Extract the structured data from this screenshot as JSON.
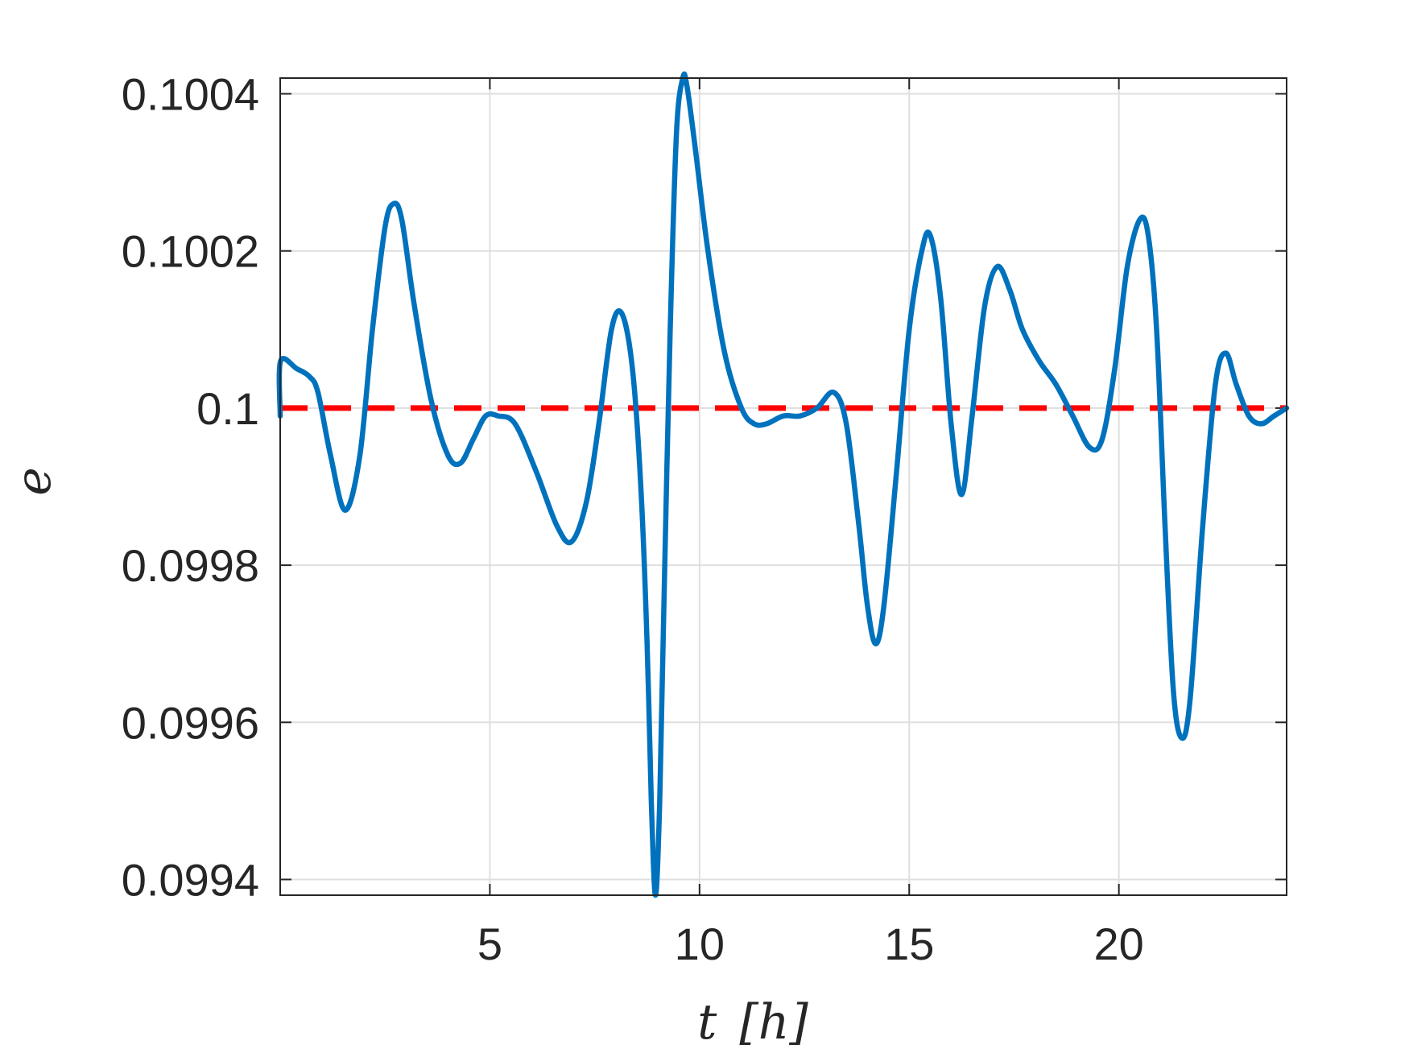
{
  "chart_data": {
    "type": "line",
    "xlabel_var": "t",
    "xlabel_unit": "[h]",
    "ylabel": "e",
    "xlim": [
      0,
      24
    ],
    "ylim": [
      0.09938,
      0.10042
    ],
    "xticks": [
      5,
      10,
      15,
      20
    ],
    "yticks": [
      0.0994,
      0.0996,
      0.0998,
      0.1,
      0.1002,
      0.1004
    ],
    "ytick_labels": [
      "0.0994",
      "0.0996",
      "0.0998",
      "0.1",
      "0.1002",
      "0.1004"
    ],
    "grid": true,
    "colors": {
      "series": "#0072BD",
      "reference": "#FF0000",
      "grid": "#DFDFDF",
      "axis": "#262626"
    },
    "reference": {
      "y": 0.1,
      "style": "dashed"
    },
    "series": [
      {
        "points": [
          [
            0,
            0.09999
          ],
          [
            0.01,
            0.10006
          ],
          [
            0.4,
            0.10005
          ],
          [
            0.7,
            0.10004
          ],
          [
            0.9,
            0.10002
          ],
          [
            1.2,
            0.09994
          ],
          [
            1.55,
            0.09987
          ],
          [
            1.9,
            0.09994
          ],
          [
            2.2,
            0.1001
          ],
          [
            2.5,
            0.10023
          ],
          [
            2.7,
            0.10026
          ],
          [
            2.9,
            0.10024
          ],
          [
            3.2,
            0.10013
          ],
          [
            3.6,
            0.10001
          ],
          [
            4.0,
            0.09994
          ],
          [
            4.3,
            0.09993
          ],
          [
            4.6,
            0.09996
          ],
          [
            4.9,
            0.09999
          ],
          [
            5.2,
            0.09999
          ],
          [
            5.6,
            0.09998
          ],
          [
            6.1,
            0.09992
          ],
          [
            6.6,
            0.09985
          ],
          [
            6.95,
            0.09983
          ],
          [
            7.3,
            0.09988
          ],
          [
            7.6,
            0.09998
          ],
          [
            7.9,
            0.1001
          ],
          [
            8.15,
            0.10012
          ],
          [
            8.4,
            0.10005
          ],
          [
            8.6,
            0.0999
          ],
          [
            8.75,
            0.0997
          ],
          [
            8.85,
            0.0995
          ],
          [
            8.95,
            0.09938
          ],
          [
            9.05,
            0.0995
          ],
          [
            9.15,
            0.09975
          ],
          [
            9.3,
            0.1001
          ],
          [
            9.45,
            0.10035
          ],
          [
            9.6,
            0.10042
          ],
          [
            9.7,
            0.10041
          ],
          [
            9.9,
            0.10033
          ],
          [
            10.2,
            0.1002
          ],
          [
            10.6,
            0.10007
          ],
          [
            11.0,
            0.1
          ],
          [
            11.3,
            0.09998
          ],
          [
            11.6,
            0.09998
          ],
          [
            12.0,
            0.09999
          ],
          [
            12.4,
            0.09999
          ],
          [
            12.8,
            0.1
          ],
          [
            13.2,
            0.10002
          ],
          [
            13.5,
            0.09998
          ],
          [
            13.8,
            0.09985
          ],
          [
            14.0,
            0.09975
          ],
          [
            14.2,
            0.0997
          ],
          [
            14.4,
            0.09975
          ],
          [
            14.7,
            0.09992
          ],
          [
            15.0,
            0.1001
          ],
          [
            15.3,
            0.1002
          ],
          [
            15.5,
            0.10022
          ],
          [
            15.75,
            0.10014
          ],
          [
            16.0,
            0.09998
          ],
          [
            16.25,
            0.09989
          ],
          [
            16.5,
            0.09999
          ],
          [
            16.8,
            0.10013
          ],
          [
            17.1,
            0.10018
          ],
          [
            17.4,
            0.10015
          ],
          [
            17.7,
            0.1001
          ],
          [
            18.1,
            0.10006
          ],
          [
            18.5,
            0.10003
          ],
          [
            18.9,
            0.09999
          ],
          [
            19.3,
            0.09995
          ],
          [
            19.6,
            0.09996
          ],
          [
            19.9,
            0.10005
          ],
          [
            20.2,
            0.10018
          ],
          [
            20.5,
            0.10024
          ],
          [
            20.7,
            0.10022
          ],
          [
            20.9,
            0.1001
          ],
          [
            21.1,
            0.09985
          ],
          [
            21.3,
            0.09964
          ],
          [
            21.5,
            0.09958
          ],
          [
            21.7,
            0.09963
          ],
          [
            22.0,
            0.09985
          ],
          [
            22.3,
            0.10003
          ],
          [
            22.55,
            0.10007
          ],
          [
            22.8,
            0.10003
          ],
          [
            23.1,
            0.09999
          ],
          [
            23.4,
            0.09998
          ],
          [
            23.7,
            0.09999
          ],
          [
            24.0,
            0.1
          ]
        ]
      }
    ]
  }
}
